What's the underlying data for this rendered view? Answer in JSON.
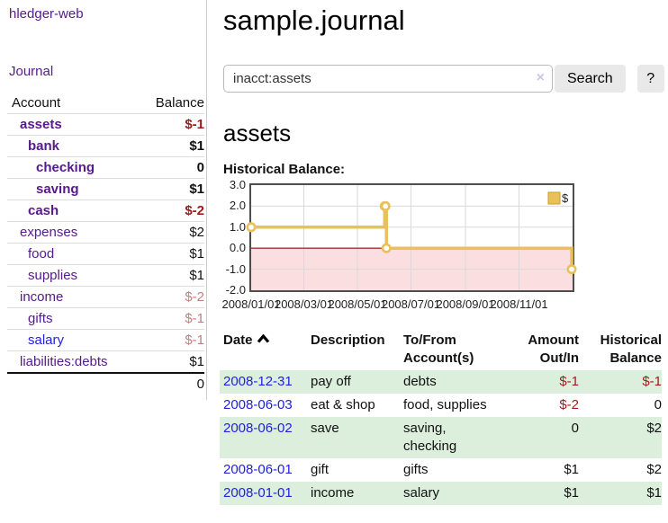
{
  "colors": {
    "link_purple": "#551a8b",
    "link_blue": "#2222dd",
    "negative_strong": "#9e1a1c",
    "negative_soft": "#c08081",
    "row_stripe_green": "#dcefdc",
    "chart_gold": "#e9c05a"
  },
  "sidebar": {
    "brand": "hledger-web",
    "nav_journal": "Journal",
    "header": {
      "account": "Account",
      "balance": "Balance"
    },
    "accounts": [
      {
        "name": "assets",
        "balance": "$-1"
      },
      {
        "name": "bank",
        "balance": "$1"
      },
      {
        "name": "checking",
        "balance": "0"
      },
      {
        "name": "saving",
        "balance": "$1"
      },
      {
        "name": "cash",
        "balance": "$-2"
      },
      {
        "name": "expenses",
        "balance": "$2"
      },
      {
        "name": "food",
        "balance": "$1"
      },
      {
        "name": "supplies",
        "balance": "$1"
      },
      {
        "name": "income",
        "balance": "$-2"
      },
      {
        "name": "gifts",
        "balance": "$-1"
      },
      {
        "name": "salary",
        "balance": "$-1"
      },
      {
        "name": "liabilities:debts",
        "balance": "$1"
      }
    ],
    "total": "0"
  },
  "main": {
    "title": "sample.journal",
    "search": {
      "value": "inacct:assets",
      "clear_icon": "×",
      "search_button": "Search",
      "help_button": "?"
    },
    "heading": "assets",
    "chart_title": "Historical Balance:",
    "register": {
      "headers": {
        "date": "Date",
        "description": "Description",
        "accounts": "To/From Account(s)",
        "amount": "Amount Out/In",
        "balance": "Historical Balance"
      },
      "rows": [
        {
          "date": "2008-12-31",
          "description": "pay off",
          "accounts": "debts",
          "amount": "$-1",
          "balance": "$-1"
        },
        {
          "date": "2008-06-03",
          "description": "eat & shop",
          "accounts": "food, supplies",
          "amount": "$-2",
          "balance": "0"
        },
        {
          "date": "2008-06-02",
          "description": "save",
          "accounts": "saving, checking",
          "amount": "0",
          "balance": "$2"
        },
        {
          "date": "2008-06-01",
          "description": "gift",
          "accounts": "gifts",
          "amount": "$1",
          "balance": "$2"
        },
        {
          "date": "2008-01-01",
          "description": "income",
          "accounts": "salary",
          "amount": "$1",
          "balance": "$1"
        }
      ]
    }
  },
  "chart_data": {
    "type": "line",
    "step": true,
    "title": "Historical Balance:",
    "series": [
      {
        "name": "$",
        "color": "#e9c05a",
        "points": [
          {
            "x": "2008-01-01",
            "y": 1
          },
          {
            "x": "2008-06-01",
            "y": 2
          },
          {
            "x": "2008-06-02",
            "y": 2
          },
          {
            "x": "2008-06-03",
            "y": 0
          },
          {
            "x": "2008-12-31",
            "y": -1
          }
        ]
      }
    ],
    "xlim": [
      "2008-01-01",
      "2009-01-01"
    ],
    "ylim": [
      -2,
      3
    ],
    "xticks": [
      "2008/01/01",
      "2008/03/01",
      "2008/05/01",
      "2008/07/01",
      "2008/09/01",
      "2008/11/01"
    ],
    "yticks": [
      3.0,
      2.0,
      1.0,
      0.0,
      -1.0,
      -2.0
    ],
    "grid": true,
    "legend_position": "top-right",
    "negative_region_color": "#fbdee0",
    "zero_line_color": "#9b3333",
    "grid_color": "#d9d9d9",
    "border_color": "#4d4d4d"
  }
}
